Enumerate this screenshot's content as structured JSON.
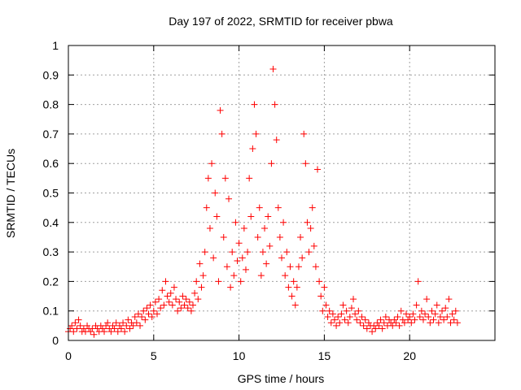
{
  "chart_data": {
    "type": "scatter",
    "title": "Day 197 of 2022, SRMTID for receiver pbwa",
    "xlabel": "GPS time / hours",
    "ylabel": "SRMTID / TECUs",
    "xlim": [
      0,
      25
    ],
    "ylim": [
      0,
      1
    ],
    "xticks": [
      0,
      5,
      10,
      15,
      20
    ],
    "xtick_labels": [
      "0",
      "5",
      "10",
      "15",
      "20"
    ],
    "yticks": [
      0,
      0.1,
      0.2,
      0.3,
      0.4,
      0.5,
      0.6,
      0.7,
      0.8,
      0.9,
      1
    ],
    "ytick_labels": [
      "0",
      "0.1",
      "0.2",
      "0.3",
      "0.4",
      "0.5",
      "0.6",
      "0.7",
      "0.8",
      "0.9",
      "1"
    ],
    "grid": true,
    "marker": "+",
    "series_color": "#ff0000",
    "series": [
      {
        "name": "SRMTID",
        "points": [
          [
            0.0,
            0.03
          ],
          [
            0.1,
            0.04
          ],
          [
            0.2,
            0.05
          ],
          [
            0.3,
            0.03
          ],
          [
            0.4,
            0.06
          ],
          [
            0.5,
            0.04
          ],
          [
            0.6,
            0.07
          ],
          [
            0.7,
            0.05
          ],
          [
            0.8,
            0.03
          ],
          [
            0.9,
            0.04
          ],
          [
            1.0,
            0.03
          ],
          [
            1.1,
            0.05
          ],
          [
            1.2,
            0.04
          ],
          [
            1.3,
            0.03
          ],
          [
            1.4,
            0.04
          ],
          [
            1.5,
            0.02
          ],
          [
            1.6,
            0.05
          ],
          [
            1.7,
            0.04
          ],
          [
            1.8,
            0.03
          ],
          [
            1.9,
            0.05
          ],
          [
            2.0,
            0.04
          ],
          [
            2.1,
            0.03
          ],
          [
            2.2,
            0.05
          ],
          [
            2.3,
            0.06
          ],
          [
            2.4,
            0.04
          ],
          [
            2.5,
            0.03
          ],
          [
            2.6,
            0.05
          ],
          [
            2.7,
            0.04
          ],
          [
            2.8,
            0.06
          ],
          [
            2.9,
            0.03
          ],
          [
            3.0,
            0.05
          ],
          [
            3.1,
            0.04
          ],
          [
            3.2,
            0.06
          ],
          [
            3.3,
            0.03
          ],
          [
            3.4,
            0.05
          ],
          [
            3.5,
            0.07
          ],
          [
            3.6,
            0.04
          ],
          [
            3.7,
            0.06
          ],
          [
            3.8,
            0.05
          ],
          [
            3.9,
            0.08
          ],
          [
            4.0,
            0.06
          ],
          [
            4.1,
            0.09
          ],
          [
            4.2,
            0.05
          ],
          [
            4.3,
            0.08
          ],
          [
            4.4,
            0.1
          ],
          [
            4.5,
            0.07
          ],
          [
            4.6,
            0.11
          ],
          [
            4.7,
            0.09
          ],
          [
            4.8,
            0.12
          ],
          [
            4.9,
            0.08
          ],
          [
            5.0,
            0.1
          ],
          [
            5.1,
            0.13
          ],
          [
            5.2,
            0.09
          ],
          [
            5.3,
            0.14
          ],
          [
            5.4,
            0.11
          ],
          [
            5.5,
            0.17
          ],
          [
            5.6,
            0.12
          ],
          [
            5.7,
            0.2
          ],
          [
            5.8,
            0.15
          ],
          [
            5.9,
            0.13
          ],
          [
            6.0,
            0.16
          ],
          [
            6.1,
            0.12
          ],
          [
            6.2,
            0.18
          ],
          [
            6.3,
            0.14
          ],
          [
            6.4,
            0.1
          ],
          [
            6.5,
            0.13
          ],
          [
            6.6,
            0.11
          ],
          [
            6.7,
            0.15
          ],
          [
            6.8,
            0.12
          ],
          [
            6.9,
            0.14
          ],
          [
            7.0,
            0.11
          ],
          [
            7.1,
            0.13
          ],
          [
            7.2,
            0.1
          ],
          [
            7.3,
            0.12
          ],
          [
            7.4,
            0.16
          ],
          [
            7.5,
            0.2
          ],
          [
            7.6,
            0.14
          ],
          [
            7.7,
            0.26
          ],
          [
            7.8,
            0.18
          ],
          [
            7.9,
            0.22
          ],
          [
            8.0,
            0.3
          ],
          [
            8.1,
            0.45
          ],
          [
            8.2,
            0.55
          ],
          [
            8.3,
            0.38
          ],
          [
            8.4,
            0.6
          ],
          [
            8.5,
            0.28
          ],
          [
            8.6,
            0.5
          ],
          [
            8.7,
            0.42
          ],
          [
            8.8,
            0.2
          ],
          [
            8.9,
            0.78
          ],
          [
            9.0,
            0.7
          ],
          [
            9.1,
            0.35
          ],
          [
            9.2,
            0.55
          ],
          [
            9.3,
            0.25
          ],
          [
            9.4,
            0.48
          ],
          [
            9.5,
            0.18
          ],
          [
            9.6,
            0.3
          ],
          [
            9.7,
            0.22
          ],
          [
            9.8,
            0.4
          ],
          [
            9.9,
            0.27
          ],
          [
            10.0,
            0.33
          ],
          [
            10.1,
            0.2
          ],
          [
            10.2,
            0.28
          ],
          [
            10.3,
            0.38
          ],
          [
            10.4,
            0.24
          ],
          [
            10.5,
            0.3
          ],
          [
            10.6,
            0.55
          ],
          [
            10.7,
            0.42
          ],
          [
            10.8,
            0.65
          ],
          [
            10.9,
            0.8
          ],
          [
            11.0,
            0.7
          ],
          [
            11.1,
            0.35
          ],
          [
            11.2,
            0.45
          ],
          [
            11.3,
            0.22
          ],
          [
            11.4,
            0.3
          ],
          [
            11.5,
            0.38
          ],
          [
            11.6,
            0.26
          ],
          [
            11.7,
            0.42
          ],
          [
            11.8,
            0.32
          ],
          [
            11.9,
            0.6
          ],
          [
            12.0,
            0.92
          ],
          [
            12.1,
            0.8
          ],
          [
            12.2,
            0.68
          ],
          [
            12.3,
            0.45
          ],
          [
            12.4,
            0.35
          ],
          [
            12.5,
            0.28
          ],
          [
            12.6,
            0.4
          ],
          [
            12.7,
            0.22
          ],
          [
            12.8,
            0.3
          ],
          [
            12.9,
            0.18
          ],
          [
            13.0,
            0.25
          ],
          [
            13.1,
            0.15
          ],
          [
            13.2,
            0.2
          ],
          [
            13.3,
            0.12
          ],
          [
            13.4,
            0.18
          ],
          [
            13.5,
            0.25
          ],
          [
            13.6,
            0.35
          ],
          [
            13.7,
            0.28
          ],
          [
            13.8,
            0.7
          ],
          [
            13.9,
            0.6
          ],
          [
            14.0,
            0.4
          ],
          [
            14.1,
            0.3
          ],
          [
            14.2,
            0.38
          ],
          [
            14.3,
            0.45
          ],
          [
            14.4,
            0.32
          ],
          [
            14.5,
            0.25
          ],
          [
            14.6,
            0.58
          ],
          [
            14.7,
            0.2
          ],
          [
            14.8,
            0.15
          ],
          [
            14.9,
            0.1
          ],
          [
            15.0,
            0.18
          ],
          [
            15.1,
            0.12
          ],
          [
            15.2,
            0.08
          ],
          [
            15.3,
            0.1
          ],
          [
            15.4,
            0.06
          ],
          [
            15.5,
            0.09
          ],
          [
            15.6,
            0.07
          ],
          [
            15.7,
            0.05
          ],
          [
            15.8,
            0.08
          ],
          [
            15.9,
            0.06
          ],
          [
            16.0,
            0.09
          ],
          [
            16.1,
            0.12
          ],
          [
            16.2,
            0.07
          ],
          [
            16.3,
            0.1
          ],
          [
            16.4,
            0.06
          ],
          [
            16.5,
            0.08
          ],
          [
            16.6,
            0.11
          ],
          [
            16.7,
            0.14
          ],
          [
            16.8,
            0.09
          ],
          [
            16.9,
            0.07
          ],
          [
            17.0,
            0.1
          ],
          [
            17.1,
            0.06
          ],
          [
            17.2,
            0.08
          ],
          [
            17.3,
            0.05
          ],
          [
            17.4,
            0.07
          ],
          [
            17.5,
            0.04
          ],
          [
            17.6,
            0.06
          ],
          [
            17.7,
            0.05
          ],
          [
            17.8,
            0.03
          ],
          [
            17.9,
            0.05
          ],
          [
            18.0,
            0.04
          ],
          [
            18.1,
            0.06
          ],
          [
            18.2,
            0.05
          ],
          [
            18.3,
            0.07
          ],
          [
            18.4,
            0.04
          ],
          [
            18.5,
            0.06
          ],
          [
            18.6,
            0.08
          ],
          [
            18.7,
            0.05
          ],
          [
            18.8,
            0.07
          ],
          [
            18.9,
            0.06
          ],
          [
            19.0,
            0.05
          ],
          [
            19.1,
            0.07
          ],
          [
            19.2,
            0.06
          ],
          [
            19.3,
            0.08
          ],
          [
            19.4,
            0.05
          ],
          [
            19.5,
            0.1
          ],
          [
            19.6,
            0.07
          ],
          [
            19.7,
            0.06
          ],
          [
            19.8,
            0.09
          ],
          [
            19.9,
            0.07
          ],
          [
            20.0,
            0.08
          ],
          [
            20.1,
            0.06
          ],
          [
            20.2,
            0.09
          ],
          [
            20.3,
            0.07
          ],
          [
            20.4,
            0.12
          ],
          [
            20.5,
            0.2
          ],
          [
            20.6,
            0.08
          ],
          [
            20.7,
            0.1
          ],
          [
            20.8,
            0.07
          ],
          [
            20.9,
            0.09
          ],
          [
            21.0,
            0.14
          ],
          [
            21.1,
            0.08
          ],
          [
            21.2,
            0.06
          ],
          [
            21.3,
            0.1
          ],
          [
            21.4,
            0.07
          ],
          [
            21.5,
            0.09
          ],
          [
            21.6,
            0.12
          ],
          [
            21.7,
            0.06
          ],
          [
            21.8,
            0.08
          ],
          [
            21.9,
            0.1
          ],
          [
            22.0,
            0.07
          ],
          [
            22.1,
            0.11
          ],
          [
            22.2,
            0.08
          ],
          [
            22.3,
            0.14
          ],
          [
            22.4,
            0.06
          ],
          [
            22.5,
            0.09
          ],
          [
            22.6,
            0.07
          ],
          [
            22.7,
            0.1
          ],
          [
            22.8,
            0.06
          ]
        ]
      }
    ]
  }
}
